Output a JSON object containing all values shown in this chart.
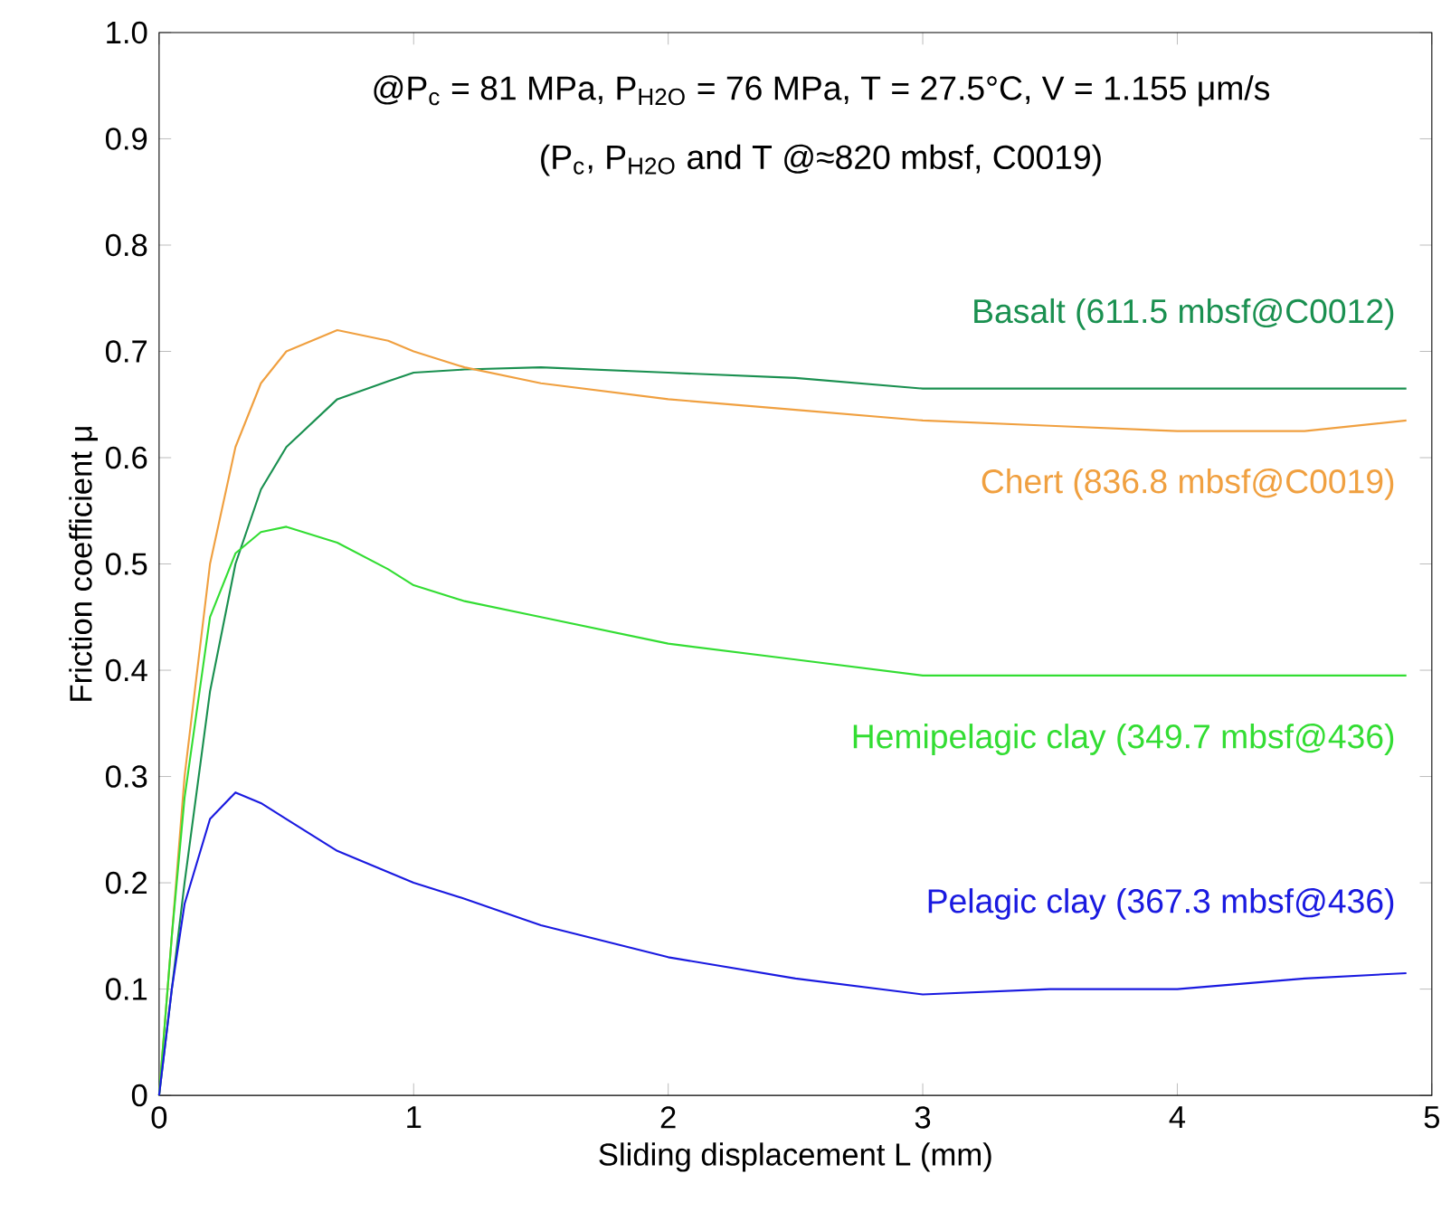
{
  "chart_data": {
    "type": "line",
    "title": "@P$_{c}$ = 81 MPa, P$_{H2O}$ = 76 MPa, T = 27.5°C, V = 1.155 μm/s",
    "subtitle": "(P$_{c}$, P$_{H2O}$ and T @≈820 mbsf, C0019)",
    "xlabel": "Sliding displacement L (mm)",
    "ylabel": "Friction coefficient μ",
    "xlim": [
      0,
      5
    ],
    "ylim": [
      0,
      1
    ],
    "xticks": [
      0,
      1,
      2,
      3,
      4,
      5
    ],
    "yticks": [
      0,
      0.1,
      0.2,
      0.3,
      0.4,
      0.5,
      0.6,
      0.7,
      0.8,
      0.9,
      {
        "value": 1,
        "label": "1.0"
      }
    ],
    "grid": false,
    "marker": "none",
    "line_style": "solid",
    "x": [
      0,
      0.05,
      0.1,
      0.2,
      0.3,
      0.4,
      0.5,
      0.7,
      0.9,
      1.0,
      1.2,
      1.5,
      2,
      2.5,
      3,
      3.5,
      4,
      4.5,
      4.9
    ],
    "series": [
      {
        "name": "Basalt (611.5 mbsf@C0012)",
        "color": "#1a9050",
        "values": [
          0,
          0.1,
          0.2,
          0.38,
          0.5,
          0.57,
          0.61,
          0.655,
          0.672,
          0.68,
          0.683,
          0.685,
          0.68,
          0.675,
          0.665,
          0.665,
          0.665,
          0.665,
          0.665
        ]
      },
      {
        "name": "Chert (836.8 mbsf@C0019)",
        "color": "#f0a040",
        "values": [
          0,
          0.15,
          0.3,
          0.5,
          0.61,
          0.67,
          0.7,
          0.72,
          0.71,
          0.7,
          0.685,
          0.67,
          0.655,
          0.645,
          0.635,
          0.63,
          0.625,
          0.625,
          0.635
        ]
      },
      {
        "name": "Hemipelagic clay (349.7 mbsf@436)",
        "color": "#33dd33",
        "values": [
          0,
          0.15,
          0.28,
          0.45,
          0.51,
          0.53,
          0.535,
          0.52,
          0.495,
          0.48,
          0.465,
          0.45,
          0.425,
          0.41,
          0.395,
          0.395,
          0.395,
          0.395,
          0.395
        ]
      },
      {
        "name": "Pelagic clay (367.3 mbsf@436)",
        "color": "#1a1ae0",
        "values": [
          0,
          0.1,
          0.18,
          0.26,
          0.285,
          0.275,
          0.26,
          0.23,
          0.21,
          0.2,
          0.185,
          0.16,
          0.13,
          0.11,
          0.095,
          0.1,
          0.1,
          0.11,
          0.115
        ]
      }
    ]
  }
}
